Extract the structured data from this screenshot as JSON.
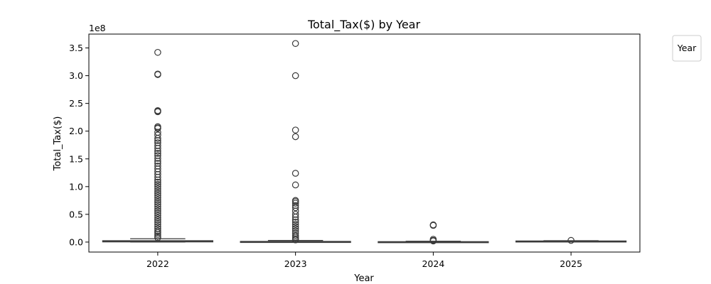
{
  "chart_data": {
    "type": "box",
    "title": "Total_Tax($) by Year",
    "xlabel": "Year",
    "ylabel": "Total_Tax($)",
    "y_offset_label": "1e8",
    "y_scale": 100000000,
    "ylim": [
      -0.18,
      3.75
    ],
    "yticks": [
      0.0,
      0.5,
      1.0,
      1.5,
      2.0,
      2.5,
      3.0,
      3.5
    ],
    "ytick_labels": [
      "0.0",
      "0.5",
      "1.0",
      "1.5",
      "2.0",
      "2.5",
      "3.0",
      "3.5"
    ],
    "categories": [
      "2022",
      "2023",
      "2024",
      "2025"
    ],
    "legend": {
      "title": "Year",
      "placement": "outside-top-right"
    },
    "grid": false,
    "series": [
      {
        "category": "2022",
        "whisker_low": 0.0,
        "q1": 0.003,
        "median": 0.01,
        "q3": 0.025,
        "whisker_high": 0.06,
        "outliers": [
          3.42,
          3.03,
          3.02,
          2.37,
          2.36,
          2.35,
          2.08,
          2.06,
          2.05,
          1.98,
          1.93,
          1.87,
          1.83,
          1.79,
          1.74,
          1.69,
          1.64,
          1.6,
          1.56,
          1.51,
          1.46,
          1.42,
          1.37,
          1.32,
          1.27,
          1.22,
          1.17,
          1.12,
          1.08,
          1.04,
          1.0,
          0.96,
          0.92,
          0.88,
          0.84,
          0.8,
          0.76,
          0.72,
          0.68,
          0.64,
          0.6,
          0.56,
          0.52,
          0.48,
          0.44,
          0.4,
          0.36,
          0.32,
          0.28,
          0.24,
          0.2,
          0.17,
          0.14,
          0.11,
          0.08
        ]
      },
      {
        "category": "2023",
        "whisker_low": 0.0,
        "q1": 0.002,
        "median": 0.005,
        "q3": 0.012,
        "whisker_high": 0.03,
        "outliers": [
          3.58,
          3.0,
          2.02,
          1.9,
          1.24,
          1.03,
          0.75,
          0.73,
          0.7,
          0.66,
          0.62,
          0.56,
          0.5,
          0.45,
          0.4,
          0.36,
          0.32,
          0.28,
          0.24,
          0.2,
          0.16,
          0.12,
          0.09,
          0.06,
          0.04
        ]
      },
      {
        "category": "2024",
        "whisker_low": 0.0,
        "q1": 0.001,
        "median": 0.003,
        "q3": 0.008,
        "whisker_high": 0.015,
        "outliers": [
          0.31,
          0.3,
          0.05,
          0.03,
          0.02
        ]
      },
      {
        "category": "2025",
        "whisker_low": 0.005,
        "q1": 0.01,
        "median": 0.015,
        "q3": 0.02,
        "whisker_high": 0.025,
        "outliers": [
          0.03
        ]
      }
    ]
  }
}
